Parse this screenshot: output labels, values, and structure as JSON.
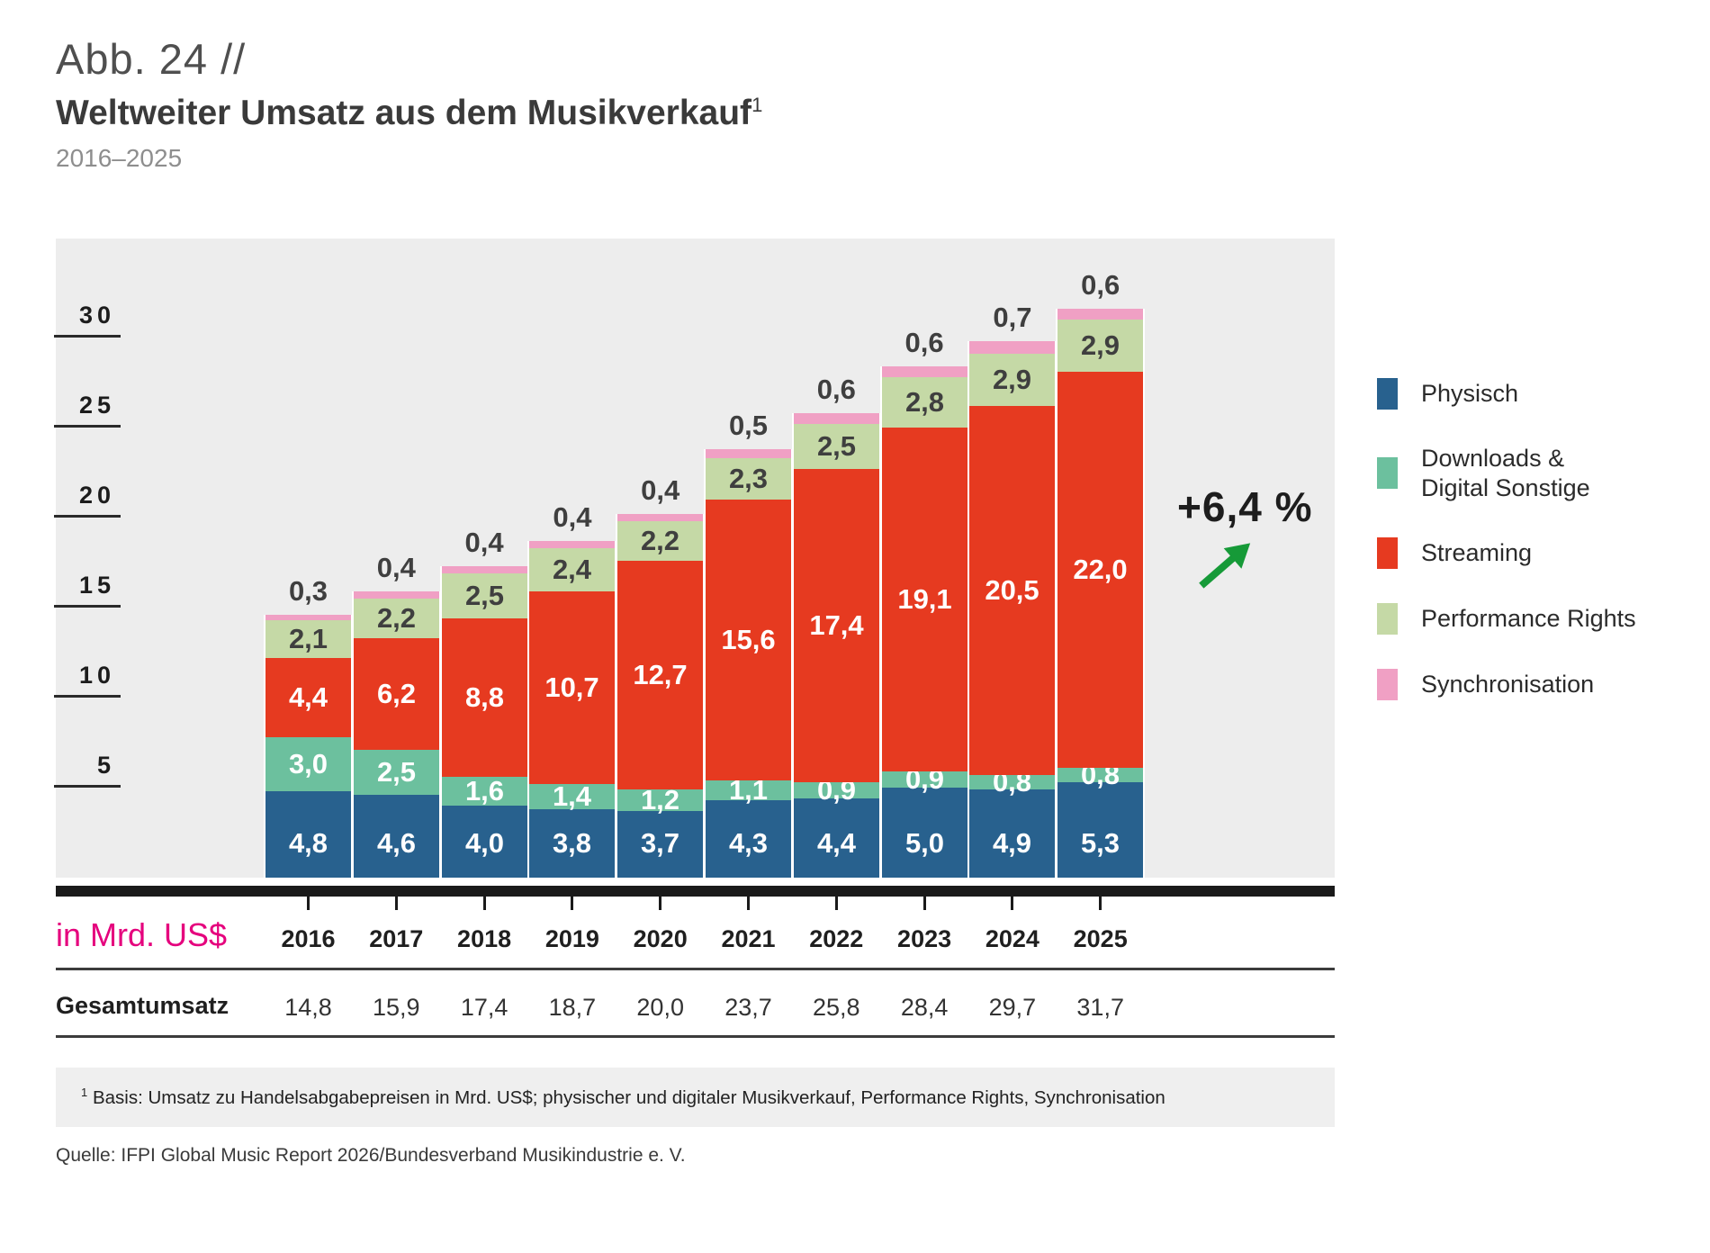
{
  "header": {
    "label": "Abb. 24 //",
    "title": "Weltweiter Umsatz aus dem Musikverkauf",
    "title_footnote_mark": "1",
    "subtitle": "2016–2025"
  },
  "chart_data": {
    "type": "bar",
    "stacked": true,
    "unit_label": "in Mrd. US$",
    "categories": [
      "2016",
      "2017",
      "2018",
      "2019",
      "2020",
      "2021",
      "2022",
      "2023",
      "2024",
      "2025"
    ],
    "series": [
      {
        "name": "Physisch",
        "color": "#28618e",
        "label_style": "white-inside",
        "values": [
          4.8,
          4.6,
          4.0,
          3.8,
          3.7,
          4.3,
          4.4,
          5.0,
          4.9,
          5.3
        ]
      },
      {
        "name": "Downloads & Digital Sonstige",
        "legend_lines": [
          "Downloads &",
          "Digital Sonstige"
        ],
        "color": "#6cc09e",
        "label_style": "white-inside",
        "values": [
          3.0,
          2.5,
          1.6,
          1.4,
          1.2,
          1.1,
          0.9,
          0.9,
          0.8,
          0.8
        ]
      },
      {
        "name": "Streaming",
        "color": "#e63a20",
        "label_style": "white-inside",
        "values": [
          4.4,
          6.2,
          8.8,
          10.7,
          12.7,
          15.6,
          17.4,
          19.1,
          20.5,
          22.0
        ]
      },
      {
        "name": "Performance Rights",
        "color": "#c5d9a6",
        "label_style": "dark-inside",
        "values": [
          2.1,
          2.2,
          2.5,
          2.4,
          2.2,
          2.3,
          2.5,
          2.8,
          2.9,
          2.9
        ]
      },
      {
        "name": "Synchronisation",
        "color": "#f0a0c4",
        "label_style": "dark-above",
        "values": [
          0.3,
          0.4,
          0.4,
          0.4,
          0.4,
          0.5,
          0.6,
          0.6,
          0.7,
          0.6
        ]
      }
    ],
    "totals_row_label": "Gesamtumsatz",
    "totals": [
      14.8,
      15.9,
      17.4,
      18.7,
      20.0,
      23.7,
      25.8,
      28.4,
      29.7,
      31.7
    ],
    "y_ticks": [
      5,
      10,
      15,
      20,
      25,
      30
    ],
    "ylim": [
      0,
      33.5
    ],
    "grid": false,
    "legend_position": "right",
    "decimal_separator": ",",
    "annotation": {
      "text": "+6,4 %",
      "arrow": "up-right",
      "arrow_color": "#169a38"
    }
  },
  "footnote": {
    "mark": "1",
    "text": "Basis: Umsatz zu Handelsabgabepreisen in Mrd. US$; physischer und digitaler Musikverkauf, Performance Rights, Synchronisation"
  },
  "source": "Quelle: IFPI Global Music Report 2026/Bundesverband Musikindustrie e. V."
}
